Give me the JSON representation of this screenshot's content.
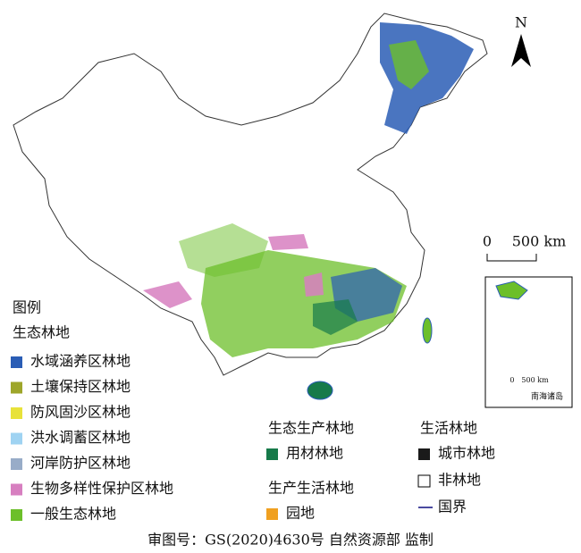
{
  "map": {
    "north_label": "N",
    "scale_bar": {
      "start": "0",
      "end": "500 km"
    }
  },
  "legend": {
    "title": "图例",
    "groups": [
      {
        "title": "生态林地",
        "items": [
          {
            "label": "水域涵养区林地",
            "color": "#2a5db5"
          },
          {
            "label": "土壤保持区林地",
            "color": "#9ea62a"
          },
          {
            "label": "防风固沙区林地",
            "color": "#e8e23a"
          },
          {
            "label": "洪水调蓄区林地",
            "color": "#9fd3f2"
          },
          {
            "label": "河岸防护区林地",
            "color": "#98acc8"
          },
          {
            "label": "生物多样性保护区林地",
            "color": "#d77fc0"
          },
          {
            "label": "一般生态林地",
            "color": "#6cbf2a"
          }
        ]
      },
      {
        "title": "生态生产林地",
        "items": [
          {
            "label": "用材林地",
            "color": "#177a4a"
          }
        ]
      },
      {
        "title": "生产生活林地",
        "items": [
          {
            "label": "园地",
            "color": "#f0a020"
          }
        ]
      },
      {
        "title": "生活林地",
        "items": [
          {
            "label": "城市林地",
            "color": "#1a1a1a"
          },
          {
            "label": "非林地",
            "color": "#ffffff",
            "symbol": "box"
          },
          {
            "label": "国界",
            "color": "#4a4aa0",
            "symbol": "line"
          }
        ]
      }
    ]
  },
  "inset": {
    "scale_start": "0",
    "scale_end": "500 km",
    "label": "南海诸岛"
  },
  "footer": "审图号：GS(2020)4630号 自然资源部 监制"
}
